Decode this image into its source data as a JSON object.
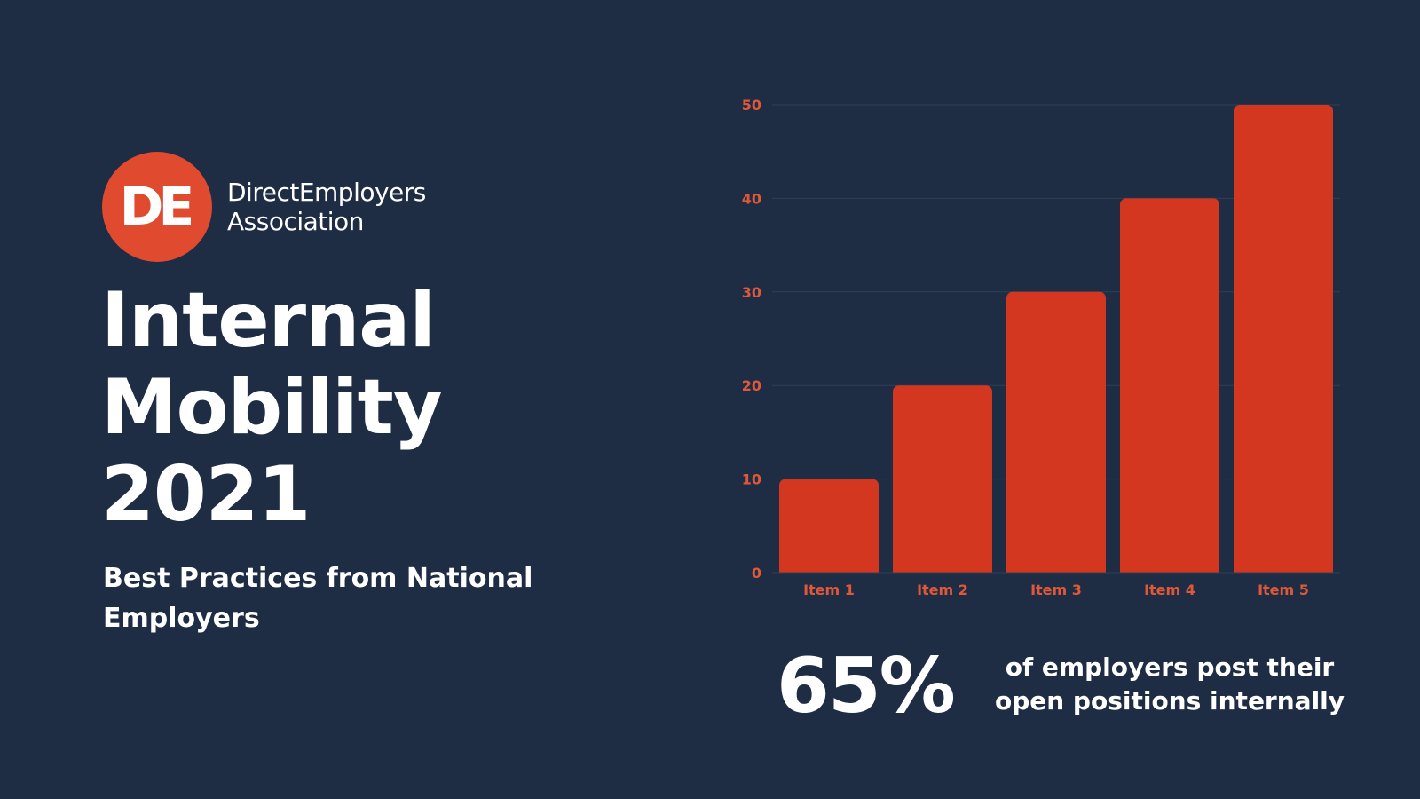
{
  "logo": {
    "mark": "DE",
    "name_line1": "DirectEmployers",
    "name_line2": "Association"
  },
  "title": {
    "line1": "Internal",
    "line2": "Mobility",
    "line3": "2021"
  },
  "subtitle": "Best Practices from National Employers",
  "stat": {
    "number": "65%",
    "text_line1": "of employers post their",
    "text_line2": "open positions internally"
  },
  "colors": {
    "background": "#1e2d44",
    "accent": "#e04a2f",
    "bar": "#d3371f",
    "tick_label": "#e0583a",
    "gridline": "#2f3f57"
  },
  "chart_data": {
    "type": "bar",
    "categories": [
      "Item 1",
      "Item 2",
      "Item 3",
      "Item 4",
      "Item 5"
    ],
    "values": [
      10,
      20,
      30,
      40,
      50
    ],
    "yticks": [
      0,
      10,
      20,
      30,
      40,
      50
    ],
    "ylim": [
      0,
      50
    ],
    "title": "",
    "xlabel": "",
    "ylabel": "",
    "grid": true
  }
}
